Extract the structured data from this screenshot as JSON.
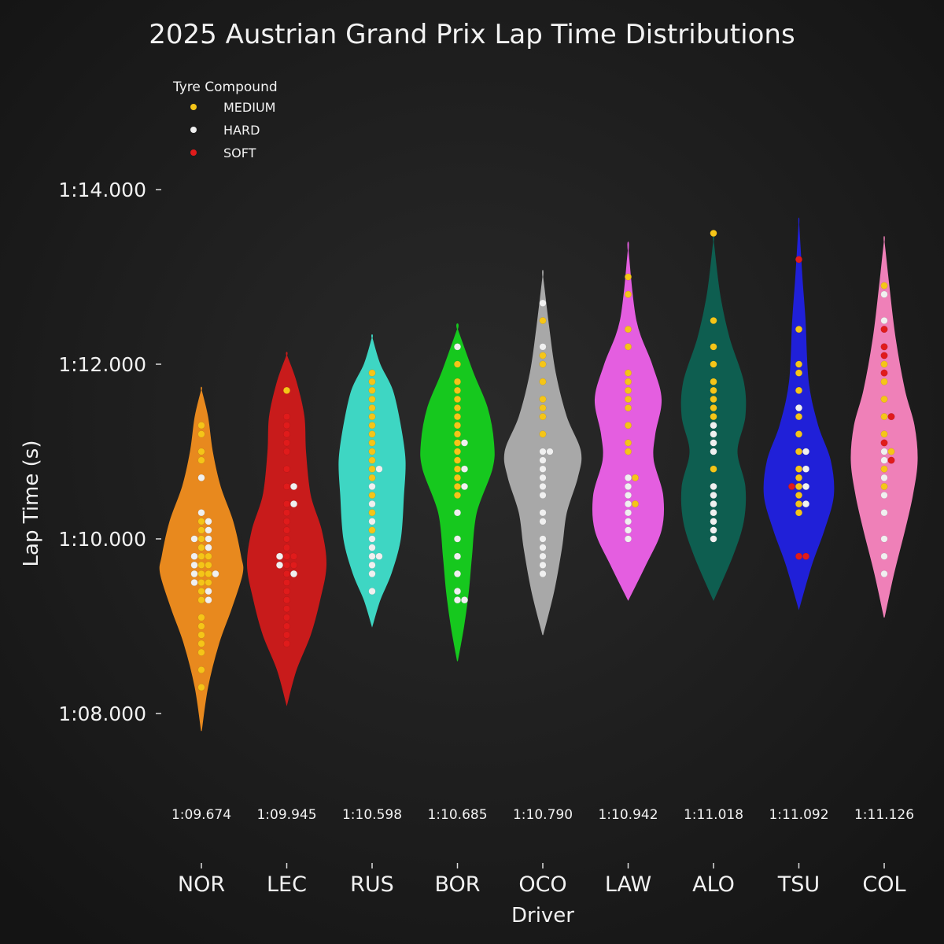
{
  "chart_data": {
    "type": "violin",
    "title": "2025 Austrian Grand Prix Lap Time Distributions",
    "xlabel": "Driver",
    "ylabel": "Lap Time (s)",
    "ylim": [
      67.0,
      75.8
    ],
    "yticks": [
      {
        "value": 68,
        "label": "1:08.000"
      },
      {
        "value": 70,
        "label": "1:10.000"
      },
      {
        "value": 72,
        "label": "1:12.000"
      },
      {
        "value": 74,
        "label": "1:14.000"
      }
    ],
    "legend": {
      "title": "Tyre Compound",
      "position": "top-left",
      "entries": [
        {
          "name": "MEDIUM",
          "color": "#f5c518"
        },
        {
          "name": "HARD",
          "color": "#f0f0f0"
        },
        {
          "name": "SOFT",
          "color": "#e01b1b"
        }
      ]
    },
    "compound_colors": {
      "MEDIUM": "#f5c518",
      "HARD": "#f0f0f0",
      "SOFT": "#e01b1b"
    },
    "drivers": [
      {
        "code": "NOR",
        "median": "1:09.674",
        "color": "#e8891e",
        "range": [
          67.8,
          71.7
        ],
        "shape": [
          [
            67.8,
            0
          ],
          [
            68.3,
            8
          ],
          [
            68.8,
            22
          ],
          [
            69.2,
            38
          ],
          [
            69.6,
            52
          ],
          [
            69.8,
            50
          ],
          [
            70.2,
            40
          ],
          [
            70.6,
            24
          ],
          [
            71.0,
            14
          ],
          [
            71.4,
            8
          ],
          [
            71.7,
            0
          ]
        ],
        "laps": {
          "MEDIUM": [
            68.3,
            68.5,
            68.7,
            68.8,
            68.9,
            69.0,
            69.1,
            69.3,
            69.4,
            69.5,
            69.5,
            69.6,
            69.6,
            69.7,
            69.7,
            69.8,
            69.8,
            69.9,
            70.0,
            70.1,
            70.2,
            70.9,
            71.0,
            71.2,
            71.3
          ],
          "HARD": [
            69.3,
            69.4,
            69.5,
            69.6,
            69.6,
            69.7,
            69.8,
            69.9,
            70.0,
            70.0,
            70.1,
            70.2,
            70.3,
            70.7
          ]
        }
      },
      {
        "code": "LEC",
        "median": "1:09.945",
        "color": "#c81b1b",
        "range": [
          68.1,
          72.1
        ],
        "shape": [
          [
            68.1,
            0
          ],
          [
            68.5,
            12
          ],
          [
            68.9,
            30
          ],
          [
            69.3,
            42
          ],
          [
            69.7,
            50
          ],
          [
            70.1,
            44
          ],
          [
            70.5,
            30
          ],
          [
            71.0,
            24
          ],
          [
            71.4,
            22
          ],
          [
            71.8,
            12
          ],
          [
            72.1,
            0
          ]
        ],
        "laps": {
          "SOFT": [
            68.8,
            68.9,
            69.0,
            69.1,
            69.2,
            69.3,
            69.4,
            69.5,
            69.6,
            69.7,
            69.7,
            69.8,
            69.8,
            69.9,
            70.0,
            70.1,
            70.2,
            70.3,
            70.4,
            70.6,
            70.8,
            71.0,
            71.1,
            71.2,
            71.3,
            71.4
          ],
          "HARD": [
            69.6,
            69.7,
            69.8,
            70.4,
            70.6
          ],
          "MEDIUM": [
            71.7
          ]
        }
      },
      {
        "code": "RUS",
        "median": "1:10.598",
        "color": "#3ed6c3",
        "range": [
          69.0,
          72.3
        ],
        "shape": [
          [
            69.0,
            0
          ],
          [
            69.3,
            10
          ],
          [
            69.6,
            24
          ],
          [
            70.0,
            36
          ],
          [
            70.5,
            40
          ],
          [
            70.9,
            42
          ],
          [
            71.3,
            36
          ],
          [
            71.7,
            26
          ],
          [
            72.0,
            10
          ],
          [
            72.3,
            0
          ]
        ],
        "laps": {
          "MEDIUM": [
            70.1,
            70.3,
            70.5,
            70.7,
            70.8,
            70.9,
            71.0,
            71.1,
            71.2,
            71.3,
            71.4,
            71.5,
            71.6,
            71.7,
            71.8,
            71.9
          ],
          "HARD": [
            69.4,
            69.6,
            69.7,
            69.8,
            69.8,
            69.9,
            70.0,
            70.2,
            70.4,
            70.6,
            70.8
          ]
        }
      },
      {
        "code": "BOR",
        "median": "1:10.685",
        "color": "#16c81e",
        "range": [
          68.6,
          72.4
        ],
        "shape": [
          [
            68.6,
            0
          ],
          [
            69.0,
            8
          ],
          [
            69.4,
            14
          ],
          [
            69.8,
            18
          ],
          [
            70.3,
            24
          ],
          [
            70.8,
            44
          ],
          [
            71.1,
            46
          ],
          [
            71.5,
            38
          ],
          [
            71.9,
            20
          ],
          [
            72.4,
            0
          ]
        ],
        "laps": {
          "MEDIUM": [
            70.5,
            70.6,
            70.7,
            70.8,
            70.9,
            71.0,
            71.1,
            71.2,
            71.3,
            71.4,
            71.5,
            71.6,
            71.7,
            71.8,
            72.0
          ],
          "HARD": [
            69.3,
            69.3,
            69.4,
            69.6,
            69.8,
            70.0,
            70.3,
            70.6,
            70.8,
            71.1,
            72.2
          ]
        }
      },
      {
        "code": "OCO",
        "median": "1:10.790",
        "color": "#a8a8a8",
        "range": [
          68.9,
          73.0
        ],
        "shape": [
          [
            68.9,
            0
          ],
          [
            69.4,
            14
          ],
          [
            69.9,
            24
          ],
          [
            70.3,
            30
          ],
          [
            70.7,
            44
          ],
          [
            71.0,
            48
          ],
          [
            71.4,
            30
          ],
          [
            71.9,
            16
          ],
          [
            72.4,
            8
          ],
          [
            73.0,
            0
          ]
        ],
        "laps": {
          "HARD": [
            69.6,
            69.7,
            69.8,
            69.9,
            70.0,
            70.2,
            70.3,
            70.5,
            70.6,
            70.7,
            70.8,
            70.9,
            71.0,
            71.0,
            72.2,
            72.7
          ],
          "MEDIUM": [
            71.2,
            71.4,
            71.5,
            71.6,
            71.8,
            72.0,
            72.1,
            72.5
          ]
        }
      },
      {
        "code": "LAW",
        "median": "1:10.942",
        "color": "#e45ee0",
        "range": [
          69.3,
          73.3
        ],
        "shape": [
          [
            69.3,
            0
          ],
          [
            69.7,
            22
          ],
          [
            70.1,
            42
          ],
          [
            70.5,
            44
          ],
          [
            70.9,
            32
          ],
          [
            71.2,
            34
          ],
          [
            71.6,
            42
          ],
          [
            72.0,
            30
          ],
          [
            72.5,
            10
          ],
          [
            73.3,
            0
          ]
        ],
        "laps": {
          "HARD": [
            70.0,
            70.1,
            70.2,
            70.3,
            70.4,
            70.5,
            70.6,
            70.7
          ],
          "MEDIUM": [
            70.4,
            70.7,
            71.0,
            71.1,
            71.3,
            71.5,
            71.6,
            71.7,
            71.8,
            71.9,
            72.2,
            72.4,
            73.0,
            72.8
          ]
        }
      },
      {
        "code": "ALO",
        "median": "1:11.018",
        "color": "#0e5e50",
        "range": [
          69.3,
          73.4
        ],
        "shape": [
          [
            69.3,
            0
          ],
          [
            69.8,
            24
          ],
          [
            70.2,
            38
          ],
          [
            70.6,
            40
          ],
          [
            71.0,
            30
          ],
          [
            71.4,
            40
          ],
          [
            71.8,
            38
          ],
          [
            72.3,
            20
          ],
          [
            72.8,
            8
          ],
          [
            73.4,
            0
          ]
        ],
        "laps": {
          "HARD": [
            70.0,
            70.1,
            70.2,
            70.3,
            70.4,
            70.5,
            70.6,
            71.0,
            71.1,
            71.2,
            71.3
          ],
          "MEDIUM": [
            70.8,
            71.4,
            71.5,
            71.6,
            71.7,
            71.8,
            72.0,
            72.2,
            72.5,
            73.5
          ]
        }
      },
      {
        "code": "TSU",
        "median": "1:11.092",
        "color": "#2020d8",
        "range": [
          69.2,
          73.6
        ],
        "shape": [
          [
            69.2,
            0
          ],
          [
            69.7,
            16
          ],
          [
            70.1,
            32
          ],
          [
            70.5,
            44
          ],
          [
            70.9,
            40
          ],
          [
            71.3,
            24
          ],
          [
            71.8,
            12
          ],
          [
            72.5,
            8
          ],
          [
            73.0,
            4
          ],
          [
            73.6,
            0
          ]
        ],
        "laps": {
          "MEDIUM": [
            70.3,
            70.4,
            70.5,
            70.6,
            70.7,
            70.8,
            71.0,
            71.2,
            71.4,
            71.7,
            71.9,
            72.0,
            72.4
          ],
          "HARD": [
            70.4,
            70.6,
            70.8,
            71.0,
            71.5
          ],
          "SOFT": [
            69.8,
            69.8,
            70.6,
            73.2
          ]
        }
      },
      {
        "code": "COL",
        "median": "1:11.126",
        "color": "#ef80b8",
        "range": [
          69.1,
          73.4
        ],
        "shape": [
          [
            69.1,
            0
          ],
          [
            69.6,
            12
          ],
          [
            70.1,
            26
          ],
          [
            70.5,
            36
          ],
          [
            70.9,
            42
          ],
          [
            71.3,
            38
          ],
          [
            71.7,
            26
          ],
          [
            72.3,
            14
          ],
          [
            72.9,
            6
          ],
          [
            73.4,
            0
          ]
        ],
        "laps": {
          "HARD": [
            69.6,
            69.8,
            70.0,
            70.3,
            70.5,
            70.7,
            70.9,
            71.0,
            72.5,
            72.8
          ],
          "MEDIUM": [
            70.6,
            70.8,
            71.0,
            71.2,
            71.4,
            71.6,
            71.8,
            72.0,
            72.9
          ],
          "SOFT": [
            71.1,
            71.4,
            72.2,
            72.1,
            71.9,
            70.9,
            72.4
          ]
        }
      }
    ]
  }
}
